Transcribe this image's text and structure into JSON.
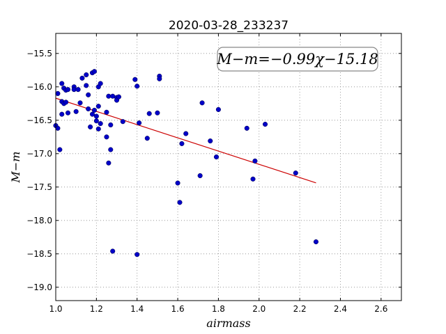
{
  "chart_data": {
    "type": "scatter",
    "title": "2020-03-28_233237",
    "xlabel": "airmass",
    "ylabel": "M−m",
    "xlim": [
      1.0,
      2.7
    ],
    "ylim": [
      -19.2,
      -15.2
    ],
    "y_inverted": false,
    "grid": true,
    "x_ticks": [
      1.0,
      1.2,
      1.4,
      1.6,
      1.8,
      2.0,
      2.2,
      2.4,
      2.6
    ],
    "x_tick_labels": [
      "1.0",
      "1.2",
      "1.4",
      "1.6",
      "1.8",
      "2.0",
      "2.2",
      "2.4",
      "2.6"
    ],
    "y_ticks": [
      -15.5,
      -16.0,
      -16.5,
      -17.0,
      -17.5,
      -18.0,
      -18.5,
      -19.0
    ],
    "y_tick_labels": [
      "−15.5",
      "−16.0",
      "−16.5",
      "−17.0",
      "−17.5",
      "−18.0",
      "−18.5",
      "−19.0"
    ],
    "annotation": "M−m=−0.99χ−15.18",
    "annotation_position": "top-right",
    "point_color": "#0000c8",
    "fit_color": "#cc0000",
    "fit": {
      "slope": -0.99,
      "intercept": -15.18,
      "x_range": [
        1.0,
        2.28
      ]
    },
    "points": [
      {
        "x": 1.0,
        "y": -16.58
      },
      {
        "x": 1.01,
        "y": -16.62
      },
      {
        "x": 1.01,
        "y": -16.1
      },
      {
        "x": 1.02,
        "y": -16.94
      },
      {
        "x": 1.03,
        "y": -15.95
      },
      {
        "x": 1.03,
        "y": -16.22
      },
      {
        "x": 1.03,
        "y": -16.41
      },
      {
        "x": 1.04,
        "y": -16.25
      },
      {
        "x": 1.04,
        "y": -16.02
      },
      {
        "x": 1.05,
        "y": -16.05
      },
      {
        "x": 1.05,
        "y": -16.23
      },
      {
        "x": 1.06,
        "y": -16.39
      },
      {
        "x": 1.06,
        "y": -16.04
      },
      {
        "x": 1.09,
        "y": -16.0
      },
      {
        "x": 1.09,
        "y": -16.04
      },
      {
        "x": 1.1,
        "y": -16.37
      },
      {
        "x": 1.11,
        "y": -16.04
      },
      {
        "x": 1.12,
        "y": -16.24
      },
      {
        "x": 1.13,
        "y": -15.87
      },
      {
        "x": 1.15,
        "y": -15.82
      },
      {
        "x": 1.15,
        "y": -15.98
      },
      {
        "x": 1.16,
        "y": -16.33
      },
      {
        "x": 1.16,
        "y": -16.12
      },
      {
        "x": 1.17,
        "y": -16.6
      },
      {
        "x": 1.18,
        "y": -15.79
      },
      {
        "x": 1.18,
        "y": -16.41
      },
      {
        "x": 1.19,
        "y": -15.77
      },
      {
        "x": 1.19,
        "y": -16.35
      },
      {
        "x": 1.2,
        "y": -16.44
      },
      {
        "x": 1.2,
        "y": -16.51
      },
      {
        "x": 1.21,
        "y": -16.0
      },
      {
        "x": 1.21,
        "y": -16.29
      },
      {
        "x": 1.21,
        "y": -16.63
      },
      {
        "x": 1.22,
        "y": -15.95
      },
      {
        "x": 1.22,
        "y": -16.55
      },
      {
        "x": 1.25,
        "y": -16.38
      },
      {
        "x": 1.25,
        "y": -16.75
      },
      {
        "x": 1.26,
        "y": -16.14
      },
      {
        "x": 1.26,
        "y": -17.14
      },
      {
        "x": 1.27,
        "y": -16.57
      },
      {
        "x": 1.27,
        "y": -16.94
      },
      {
        "x": 1.28,
        "y": -16.14
      },
      {
        "x": 1.28,
        "y": -18.46
      },
      {
        "x": 1.3,
        "y": -16.16
      },
      {
        "x": 1.3,
        "y": -16.2
      },
      {
        "x": 1.31,
        "y": -16.15
      },
      {
        "x": 1.33,
        "y": -16.52
      },
      {
        "x": 1.39,
        "y": -15.89
      },
      {
        "x": 1.4,
        "y": -15.99
      },
      {
        "x": 1.4,
        "y": -18.51
      },
      {
        "x": 1.41,
        "y": -16.54
      },
      {
        "x": 1.45,
        "y": -16.77
      },
      {
        "x": 1.46,
        "y": -16.4
      },
      {
        "x": 1.5,
        "y": -16.39
      },
      {
        "x": 1.51,
        "y": -15.84
      },
      {
        "x": 1.51,
        "y": -15.88
      },
      {
        "x": 1.6,
        "y": -17.44
      },
      {
        "x": 1.61,
        "y": -17.73
      },
      {
        "x": 1.62,
        "y": -16.85
      },
      {
        "x": 1.64,
        "y": -16.7
      },
      {
        "x": 1.71,
        "y": -17.33
      },
      {
        "x": 1.72,
        "y": -16.24
      },
      {
        "x": 1.76,
        "y": -16.81
      },
      {
        "x": 1.79,
        "y": -17.05
      },
      {
        "x": 1.8,
        "y": -16.34
      },
      {
        "x": 1.94,
        "y": -16.62
      },
      {
        "x": 1.97,
        "y": -17.38
      },
      {
        "x": 1.98,
        "y": -17.11
      },
      {
        "x": 2.03,
        "y": -16.56
      },
      {
        "x": 2.18,
        "y": -17.29
      },
      {
        "x": 2.28,
        "y": -18.32
      }
    ]
  }
}
